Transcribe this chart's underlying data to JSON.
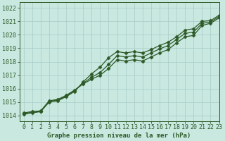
{
  "title": "Graphe pression niveau de la mer (hPa)",
  "bg_color": "#c8e8e0",
  "grid_color": "#a8ccc8",
  "line_color": "#2d5a27",
  "xlim": [
    -0.5,
    23
  ],
  "ylim": [
    1013.6,
    1022.4
  ],
  "yticks": [
    1014,
    1015,
    1016,
    1017,
    1018,
    1019,
    1020,
    1021,
    1022
  ],
  "xtick_labels": [
    "0",
    "1",
    "2",
    "3",
    "4",
    "5",
    "6",
    "7",
    "8",
    "9",
    "10",
    "11",
    "12",
    "13",
    "14",
    "15",
    "16",
    "17",
    "18",
    "19",
    "20",
    "21",
    "22",
    "23"
  ],
  "series": [
    [
      1014.1,
      1014.2,
      1014.3,
      1015.0,
      1015.1,
      1015.4,
      1015.8,
      1016.5,
      1017.1,
      1017.6,
      1018.3,
      1018.75,
      1018.65,
      1018.75,
      1018.65,
      1018.9,
      1019.2,
      1019.45,
      1019.85,
      1020.35,
      1020.45,
      1021.0,
      1021.05,
      1021.45
    ],
    [
      1014.15,
      1014.25,
      1014.3,
      1015.05,
      1015.15,
      1015.45,
      1015.85,
      1016.4,
      1016.85,
      1017.2,
      1017.8,
      1018.45,
      1018.35,
      1018.45,
      1018.35,
      1018.65,
      1018.95,
      1019.2,
      1019.65,
      1020.1,
      1020.2,
      1020.85,
      1020.95,
      1021.35
    ],
    [
      1014.2,
      1014.3,
      1014.35,
      1015.1,
      1015.2,
      1015.5,
      1015.9,
      1016.35,
      1016.7,
      1017.0,
      1017.5,
      1018.15,
      1018.05,
      1018.15,
      1018.05,
      1018.35,
      1018.65,
      1018.9,
      1019.4,
      1019.85,
      1019.95,
      1020.7,
      1020.85,
      1021.25
    ]
  ],
  "marker": "D",
  "markersize": 2.5,
  "linewidth": 0.9,
  "tick_fontsize": 6,
  "xlabel_fontsize": 6.5,
  "figsize": [
    3.2,
    2.0
  ],
  "dpi": 100
}
